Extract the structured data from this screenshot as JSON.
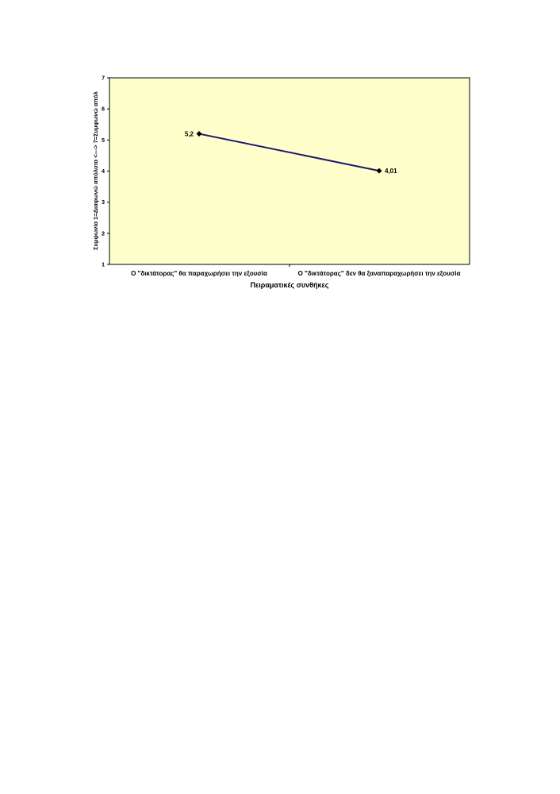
{
  "chart_data": {
    "type": "line",
    "categories": [
      "Ο \"δικτάτορας\" θα παραχωρήσει την εξουσία",
      "Ο \"δικτάτορας\" δεν θα ξαναπαραχωρήσει την εξουσία"
    ],
    "series": [
      {
        "values": [
          5.2,
          4.01
        ],
        "data_labels": [
          "5,2",
          "4,01"
        ],
        "color": "#1a1a6e"
      }
    ],
    "xlabel": "Πειραματικές συνθήκες",
    "ylabel": "Συμφωνία 1=Διαφωνώ απόλυτα <---> 7=Συμφωνώ απόλ",
    "ylim": [
      1,
      7
    ],
    "yticks": [
      "1",
      "2",
      "3",
      "4",
      "5",
      "6",
      "7"
    ],
    "grid": false,
    "plot_background": "#ffffcc",
    "marker": "diamond"
  }
}
